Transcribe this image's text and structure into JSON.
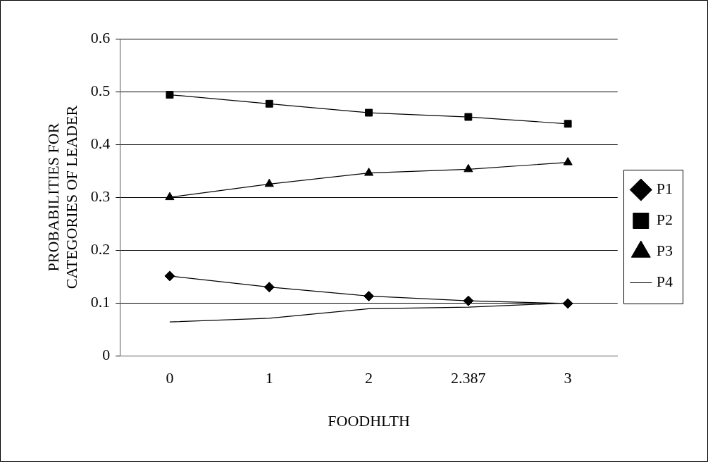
{
  "chart_data": {
    "type": "line",
    "xlabel": "FOODHLTH",
    "ylabel": "PROBABILITIES FOR\nCATEGORIES OF LEADER",
    "categories": [
      "0",
      "1",
      "2",
      "2.387",
      "3"
    ],
    "ylim": [
      0,
      0.6
    ],
    "yticks": [
      0,
      0.1,
      0.2,
      0.3,
      0.4,
      0.5,
      0.6
    ],
    "grid": "y",
    "legend": "right",
    "line_style": "solid",
    "series": [
      {
        "name": "P1",
        "color": "#000000",
        "marker": "diamond",
        "values": [
          0.151,
          0.13,
          0.113,
          0.104,
          0.099
        ]
      },
      {
        "name": "P2",
        "color": "#000000",
        "marker": "square",
        "values": [
          0.494,
          0.477,
          0.46,
          0.452,
          0.439
        ]
      },
      {
        "name": "P3",
        "color": "#000000",
        "marker": "triangle",
        "values": [
          0.3,
          0.325,
          0.346,
          0.353,
          0.366
        ]
      },
      {
        "name": "P4",
        "color": "#000000",
        "marker": "none",
        "values": [
          0.064,
          0.071,
          0.089,
          0.092,
          0.1
        ]
      }
    ]
  }
}
